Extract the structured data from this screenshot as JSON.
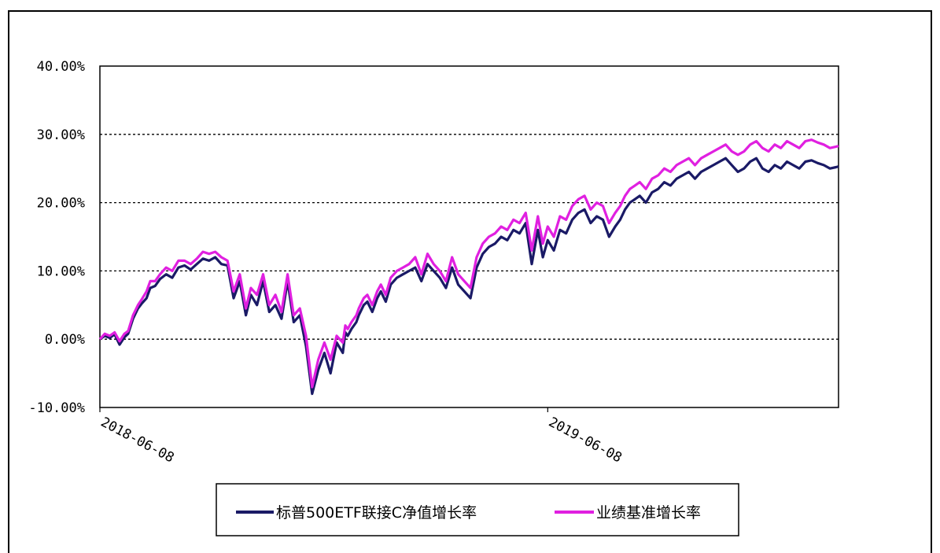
{
  "chart_data": {
    "type": "line",
    "title": "",
    "xlabel": "",
    "ylabel": "",
    "ylim": [
      -10,
      40
    ],
    "y_ticks": [
      "40.00%",
      "30.00%",
      "20.00%",
      "10.00%",
      "0.00%",
      "-10.00%"
    ],
    "y_tick_values": [
      40,
      30,
      20,
      10,
      0,
      -10
    ],
    "x_ticks": [
      "2018-06-08",
      "2019-06-08"
    ],
    "x_tick_dates": [
      "2018-06-08",
      "2019-06-08"
    ],
    "x_range": [
      "2018-06-08",
      "2020-01-31"
    ],
    "grid": "horizontal dashed",
    "legend_position": "bottom",
    "x": [
      "2018-06-08",
      "2018-06-12",
      "2018-06-16",
      "2018-06-20",
      "2018-06-24",
      "2018-06-28",
      "2018-07-01",
      "2018-07-05",
      "2018-07-09",
      "2018-07-12",
      "2018-07-16",
      "2018-07-19",
      "2018-07-23",
      "2018-07-27",
      "2018-08-01",
      "2018-08-06",
      "2018-08-11",
      "2018-08-16",
      "2018-08-21",
      "2018-08-26",
      "2018-08-31",
      "2018-09-05",
      "2018-09-10",
      "2018-09-15",
      "2018-09-20",
      "2018-09-25",
      "2018-09-30",
      "2018-10-05",
      "2018-10-09",
      "2018-10-14",
      "2018-10-19",
      "2018-10-24",
      "2018-10-29",
      "2018-11-03",
      "2018-11-08",
      "2018-11-13",
      "2018-11-18",
      "2018-11-23",
      "2018-11-28",
      "2018-12-03",
      "2018-12-08",
      "2018-12-13",
      "2018-12-18",
      "2018-12-23",
      "2018-12-25",
      "2018-12-27",
      "2018-12-30",
      "2019-01-03",
      "2019-01-05",
      "2019-01-09",
      "2019-01-12",
      "2019-01-16",
      "2019-01-20",
      "2019-01-23",
      "2019-01-27",
      "2019-01-31",
      "2019-02-05",
      "2019-02-10",
      "2019-02-15",
      "2019-02-20",
      "2019-02-25",
      "2019-03-02",
      "2019-03-07",
      "2019-03-12",
      "2019-03-17",
      "2019-03-22",
      "2019-03-27",
      "2019-04-01",
      "2019-04-06",
      "2019-04-11",
      "2019-04-16",
      "2019-04-21",
      "2019-04-26",
      "2019-05-01",
      "2019-05-06",
      "2019-05-11",
      "2019-05-16",
      "2019-05-21",
      "2019-05-26",
      "2019-05-31",
      "2019-06-04",
      "2019-06-08",
      "2019-06-13",
      "2019-06-18",
      "2019-06-23",
      "2019-06-28",
      "2019-07-03",
      "2019-07-08",
      "2019-07-13",
      "2019-07-18",
      "2019-07-23",
      "2019-07-28",
      "2019-08-02",
      "2019-08-06",
      "2019-08-10",
      "2019-08-14",
      "2019-08-18",
      "2019-08-22",
      "2019-08-27",
      "2019-09-01",
      "2019-09-06",
      "2019-09-11",
      "2019-09-16",
      "2019-09-21",
      "2019-09-26",
      "2019-10-01",
      "2019-10-06",
      "2019-10-11",
      "2019-10-16",
      "2019-10-21",
      "2019-10-26",
      "2019-10-31",
      "2019-11-05",
      "2019-11-10",
      "2019-11-15",
      "2019-11-20",
      "2019-11-25",
      "2019-11-30",
      "2019-12-05",
      "2019-12-10",
      "2019-12-15",
      "2019-12-20",
      "2019-12-25",
      "2019-12-30",
      "2020-01-04",
      "2020-01-09",
      "2020-01-14",
      "2020-01-19",
      "2020-01-24",
      "2020-01-29",
      "2020-01-31"
    ],
    "series": [
      {
        "name": "标普500ETF联接C净值增长率",
        "color": "#1a1a66",
        "values": [
          0.0,
          0.5,
          0.2,
          0.7,
          -0.8,
          0.3,
          0.8,
          3.0,
          4.5,
          5.2,
          6.0,
          7.5,
          7.8,
          8.8,
          9.5,
          9.0,
          10.5,
          10.8,
          10.2,
          11.0,
          11.8,
          11.5,
          12.0,
          11.0,
          10.8,
          6.0,
          8.5,
          3.5,
          6.5,
          5.0,
          8.5,
          4.0,
          5.0,
          3.0,
          8.5,
          2.5,
          3.5,
          -1.0,
          -8.0,
          -4.5,
          -2.0,
          -5.0,
          -0.5,
          -2.0,
          1.0,
          0.5,
          1.5,
          2.5,
          3.5,
          5.0,
          5.5,
          4.0,
          6.0,
          7.0,
          5.5,
          8.0,
          9.0,
          9.5,
          10.0,
          10.5,
          8.5,
          11.0,
          10.0,
          9.0,
          7.5,
          10.5,
          8.0,
          7.0,
          6.0,
          10.5,
          12.5,
          13.5,
          14.0,
          15.0,
          14.5,
          16.0,
          15.5,
          17.0,
          11.0,
          16.0,
          12.0,
          14.5,
          13.0,
          16.0,
          15.5,
          17.5,
          18.5,
          19.0,
          17.0,
          18.0,
          17.5,
          15.0,
          16.5,
          17.5,
          19.0,
          20.0,
          20.5,
          21.0,
          20.0,
          21.5,
          22.0,
          23.0,
          22.5,
          23.5,
          24.0,
          24.5,
          23.5,
          24.5,
          25.0,
          25.5,
          26.0,
          26.5,
          25.5,
          24.5,
          25.0,
          26.0,
          26.5,
          25.0,
          24.5,
          25.5,
          25.0,
          26.0,
          25.5,
          25.0,
          26.0,
          26.2,
          25.8,
          25.5,
          25.0,
          25.2,
          25.3
        ]
      },
      {
        "name": "业绩基准增长率",
        "color": "#e020e0",
        "values": [
          0.0,
          0.8,
          0.5,
          1.0,
          -0.3,
          0.8,
          1.2,
          3.5,
          5.0,
          5.8,
          7.0,
          8.5,
          8.5,
          9.5,
          10.5,
          10.0,
          11.5,
          11.5,
          11.0,
          11.8,
          12.8,
          12.5,
          12.8,
          12.0,
          11.5,
          7.0,
          9.5,
          4.5,
          7.5,
          6.5,
          9.5,
          5.0,
          6.5,
          4.0,
          9.5,
          3.5,
          4.5,
          0.5,
          -7.0,
          -3.0,
          -0.5,
          -3.0,
          0.5,
          -0.5,
          2.0,
          1.5,
          2.5,
          3.5,
          4.5,
          6.0,
          6.5,
          5.0,
          7.0,
          8.0,
          6.5,
          9.0,
          10.0,
          10.5,
          11.0,
          12.0,
          9.5,
          12.5,
          11.0,
          10.0,
          8.5,
          12.0,
          9.5,
          8.5,
          7.5,
          12.0,
          14.0,
          15.0,
          15.5,
          16.5,
          16.0,
          17.5,
          17.0,
          18.5,
          13.0,
          18.0,
          14.0,
          16.5,
          15.0,
          18.0,
          17.5,
          19.5,
          20.5,
          21.0,
          19.0,
          20.0,
          19.5,
          17.0,
          18.5,
          19.5,
          21.0,
          22.0,
          22.5,
          23.0,
          22.0,
          23.5,
          24.0,
          25.0,
          24.5,
          25.5,
          26.0,
          26.5,
          25.5,
          26.5,
          27.0,
          27.5,
          28.0,
          28.5,
          27.5,
          27.0,
          27.5,
          28.5,
          29.0,
          28.0,
          27.5,
          28.5,
          28.0,
          29.0,
          28.5,
          28.0,
          29.0,
          29.2,
          28.8,
          28.5,
          28.0,
          28.2,
          28.3
        ]
      }
    ]
  }
}
